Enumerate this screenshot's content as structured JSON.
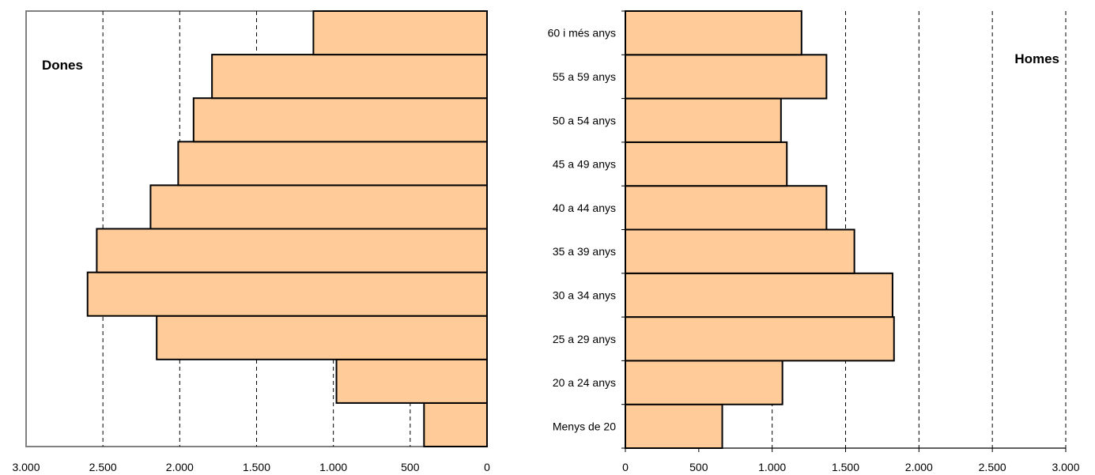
{
  "chart_data": [
    {
      "type": "bar",
      "orientation": "horizontal",
      "direction": "reversed",
      "title": "Dones",
      "xlim": [
        0,
        3000
      ],
      "x_ticks": [
        "3.000",
        "2.500",
        "2.000",
        "1.500",
        "1.000",
        "500",
        "0"
      ],
      "grid": "vertical-dashed",
      "categories": [
        "Menys de 20",
        "20 a 24 anys",
        "25 a 29 anys",
        "30 a 34 anys",
        "35 a 39 anys",
        "40 a 44 anys",
        "45 a 49 anys",
        "50 a 54 anys",
        "55 a 59 anys",
        "60 i més anys"
      ],
      "values": [
        410,
        980,
        2150,
        2600,
        2540,
        2190,
        2010,
        1910,
        1790,
        1130
      ],
      "bar_color": "#ffcc99"
    },
    {
      "type": "bar",
      "orientation": "horizontal",
      "direction": "normal",
      "title": "Homes",
      "xlim": [
        0,
        3000
      ],
      "x_ticks": [
        "0",
        "500",
        "1.000",
        "1.500",
        "2.000",
        "2.500",
        "3.000"
      ],
      "grid": "vertical-dashed",
      "categories": [
        "Menys de 20",
        "20 a 24 anys",
        "25 a 29 anys",
        "30 a 34 anys",
        "35 a 39 anys",
        "40 a 44 anys",
        "45 a 49 anys",
        "50 a 54 anys",
        "55 a 59 anys",
        "60 i més anys"
      ],
      "values": [
        660,
        1070,
        1830,
        1820,
        1560,
        1370,
        1100,
        1060,
        1370,
        1200
      ],
      "bar_color": "#ffcc99"
    }
  ]
}
